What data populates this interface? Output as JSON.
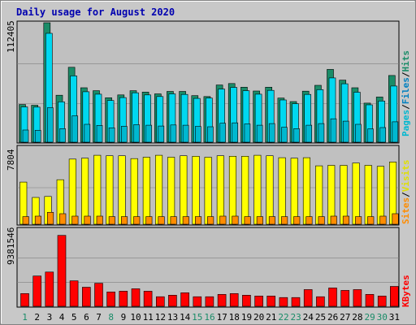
{
  "title": "Daily usage for August 2020",
  "colors": {
    "background": "#c8c8c8",
    "plot_bg": "#c0c0c0",
    "hits": "#1a8c68",
    "files": "#00d8f0",
    "pages": "#00b8d0",
    "visits": "#ffff00",
    "sites": "#ff8c00",
    "kbytes": "#ff0000",
    "title": "#0000b0",
    "weekday_label": "#000000",
    "weekend_label": "#1a8c68"
  },
  "side_labels": {
    "top": [
      {
        "text": "Pages",
        "color": "#00b8d0"
      },
      {
        "text": "/",
        "color": "#000000"
      },
      {
        "text": "Files",
        "color": "#0080c0"
      },
      {
        "text": "/",
        "color": "#000000"
      },
      {
        "text": "Hits",
        "color": "#1a8c68"
      }
    ],
    "middle": [
      {
        "text": "Sites",
        "color": "#ff8c00"
      },
      {
        "text": "/",
        "color": "#000000"
      },
      {
        "text": "Visits",
        "color": "#e0e000"
      }
    ],
    "bottom": [
      {
        "text": "KBytes",
        "color": "#ff0000"
      }
    ]
  },
  "chart_data": [
    {
      "type": "bar",
      "panel": "hits_files_pages",
      "ylabel_max": "112405",
      "ylim": [
        0,
        112405
      ],
      "categories": [
        "1",
        "2",
        "3",
        "4",
        "5",
        "6",
        "7",
        "8",
        "9",
        "10",
        "11",
        "12",
        "13",
        "14",
        "15",
        "16",
        "17",
        "18",
        "19",
        "20",
        "21",
        "22",
        "23",
        "24",
        "25",
        "26",
        "27",
        "28",
        "29",
        "30",
        "31"
      ],
      "series": [
        {
          "name": "Hits",
          "values": [
            35500,
            34800,
            112405,
            44200,
            70500,
            51200,
            48500,
            41800,
            44500,
            48500,
            47200,
            45500,
            47800,
            47800,
            43800,
            43000,
            53800,
            55200,
            51800,
            48200,
            51800,
            41500,
            38200,
            48000,
            53500,
            68500,
            58400,
            51200,
            36800,
            42500,
            62800
          ]
        },
        {
          "name": "Files",
          "values": [
            33200,
            33000,
            102500,
            38000,
            62400,
            47500,
            45200,
            39200,
            42000,
            46500,
            44500,
            43000,
            45500,
            45000,
            41200,
            41500,
            50000,
            51500,
            48500,
            45200,
            48800,
            39800,
            36200,
            45000,
            49500,
            60500,
            55000,
            47000,
            35200,
            38800,
            52800
          ]
        },
        {
          "name": "Pages",
          "values": [
            11500,
            11200,
            32500,
            12800,
            24800,
            16800,
            15800,
            13500,
            15000,
            16500,
            16000,
            15200,
            16200,
            16000,
            14800,
            14500,
            17800,
            18200,
            17200,
            16000,
            17500,
            14000,
            12800,
            16000,
            17500,
            22000,
            19800,
            16800,
            12500,
            13800,
            19200
          ]
        }
      ]
    },
    {
      "type": "bar",
      "panel": "sites_visits",
      "ylabel_max": "7804",
      "ylim": [
        0,
        7804
      ],
      "categories": [
        "1",
        "2",
        "3",
        "4",
        "5",
        "6",
        "7",
        "8",
        "9",
        "10",
        "11",
        "12",
        "13",
        "14",
        "15",
        "16",
        "17",
        "18",
        "19",
        "20",
        "21",
        "22",
        "23",
        "24",
        "25",
        "26",
        "27",
        "28",
        "29",
        "30",
        "31"
      ],
      "series": [
        {
          "name": "Visits",
          "values": [
            4400,
            2800,
            2900,
            4650,
            6800,
            6900,
            7200,
            7150,
            7150,
            6850,
            7000,
            7200,
            7000,
            7150,
            7100,
            7000,
            7150,
            7100,
            7100,
            7200,
            7150,
            6950,
            6900,
            6950,
            6100,
            6150,
            6150,
            6400,
            6150,
            6050,
            6500
          ]
        },
        {
          "name": "Sites",
          "values": [
            800,
            850,
            1250,
            1100,
            850,
            850,
            850,
            800,
            800,
            800,
            800,
            800,
            800,
            800,
            800,
            800,
            850,
            850,
            800,
            800,
            800,
            800,
            800,
            800,
            800,
            850,
            850,
            800,
            800,
            850,
            1100
          ]
        }
      ]
    },
    {
      "type": "bar",
      "panel": "kbytes",
      "ylabel_max": "9381546",
      "ylim": [
        0,
        9381546
      ],
      "categories": [
        "1",
        "2",
        "3",
        "4",
        "5",
        "6",
        "7",
        "8",
        "9",
        "10",
        "11",
        "12",
        "13",
        "14",
        "15",
        "16",
        "17",
        "18",
        "19",
        "20",
        "21",
        "22",
        "23",
        "24",
        "25",
        "26",
        "27",
        "28",
        "29",
        "30",
        "31"
      ],
      "series": [
        {
          "name": "KBytes",
          "values": [
            1600000,
            3800000,
            4300000,
            8900000,
            3200000,
            2400000,
            2900000,
            1800000,
            1900000,
            2200000,
            1900000,
            1200000,
            1400000,
            1700000,
            1200000,
            1200000,
            1500000,
            1600000,
            1400000,
            1300000,
            1300000,
            1100000,
            1100000,
            2100000,
            1200000,
            2300000,
            2000000,
            2100000,
            1500000,
            1300000,
            2500000
          ]
        }
      ]
    }
  ],
  "weekend_days": [
    1,
    8,
    15,
    16,
    22,
    23,
    29,
    30
  ]
}
